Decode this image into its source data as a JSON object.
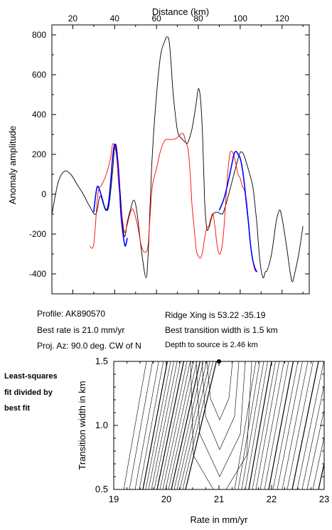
{
  "chart_data": [
    {
      "type": "line",
      "xlabel": "Distance (km)",
      "ylabel": "Anomaly amplitude",
      "xlim": [
        10,
        133
      ],
      "ylim": [
        -500,
        850
      ],
      "x_ticks": [
        20,
        40,
        60,
        80,
        100,
        120
      ],
      "y_ticks": [
        -400,
        -200,
        0,
        200,
        400,
        600,
        800
      ],
      "x_axis_position": "top",
      "grid": false,
      "series": [
        {
          "color": "#000000",
          "points": [
            [
              10,
              -100
            ],
            [
              13,
              60
            ],
            [
              16,
              115
            ],
            [
              19,
              100
            ],
            [
              22,
              50
            ],
            [
              25,
              0
            ],
            [
              28,
              -60
            ],
            [
              31,
              -100
            ],
            [
              33,
              -10
            ],
            [
              35,
              -60
            ],
            [
              37,
              -70
            ],
            [
              39,
              110
            ],
            [
              40,
              240
            ],
            [
              41,
              230
            ],
            [
              42,
              100
            ],
            [
              44,
              -170
            ],
            [
              45,
              -210
            ],
            [
              46,
              -140
            ],
            [
              48,
              -60
            ],
            [
              49,
              -30
            ],
            [
              50,
              -50
            ],
            [
              51,
              -120
            ],
            [
              53,
              -300
            ],
            [
              55,
              -420
            ],
            [
              56,
              -300
            ],
            [
              57,
              -40
            ],
            [
              58,
              200
            ],
            [
              60,
              500
            ],
            [
              62,
              700
            ],
            [
              64,
              770
            ],
            [
              65,
              790
            ],
            [
              66,
              770
            ],
            [
              67,
              650
            ],
            [
              68,
              500
            ],
            [
              70,
              320
            ],
            [
              72,
              280
            ],
            [
              74,
              260
            ],
            [
              75,
              260
            ],
            [
              77,
              330
            ],
            [
              79,
              460
            ],
            [
              80,
              530
            ],
            [
              81,
              480
            ],
            [
              82,
              300
            ],
            [
              83,
              -30
            ],
            [
              84,
              -170
            ],
            [
              85,
              -170
            ],
            [
              86,
              -130
            ],
            [
              87,
              -100
            ],
            [
              89,
              -90
            ],
            [
              91,
              -100
            ],
            [
              92,
              -90
            ],
            [
              94,
              -20
            ],
            [
              96,
              60
            ],
            [
              98,
              140
            ],
            [
              99,
              180
            ],
            [
              100,
              210
            ],
            [
              101,
              210
            ],
            [
              102,
              190
            ],
            [
              104,
              120
            ],
            [
              106,
              40
            ],
            [
              107,
              -50
            ],
            [
              108,
              -150
            ],
            [
              109,
              -290
            ],
            [
              110,
              -380
            ],
            [
              111,
              -420
            ],
            [
              112,
              -390
            ],
            [
              113,
              -380
            ],
            [
              115,
              -300
            ],
            [
              117,
              -150
            ],
            [
              118,
              -100
            ],
            [
              119,
              -80
            ],
            [
              120,
              -120
            ],
            [
              122,
              -250
            ],
            [
              124,
              -400
            ],
            [
              125,
              -440
            ],
            [
              126,
              -400
            ],
            [
              128,
              -300
            ],
            [
              130,
              -160
            ]
          ]
        },
        {
          "color": "#ff0000",
          "points": [
            [
              28,
              -260
            ],
            [
              30,
              -250
            ],
            [
              32,
              0
            ],
            [
              34,
              50
            ],
            [
              36,
              100
            ],
            [
              38,
              180
            ],
            [
              39,
              250
            ],
            [
              40,
              240
            ],
            [
              41,
              180
            ],
            [
              42,
              40
            ],
            [
              44,
              -150
            ],
            [
              45,
              -190
            ],
            [
              47,
              -110
            ],
            [
              48,
              -80
            ],
            [
              49,
              -80
            ],
            [
              51,
              -160
            ],
            [
              53,
              -270
            ],
            [
              55,
              -290
            ],
            [
              56,
              -250
            ],
            [
              57,
              -100
            ],
            [
              58,
              40
            ],
            [
              60,
              130
            ],
            [
              62,
              220
            ],
            [
              64,
              270
            ],
            [
              66,
              275
            ],
            [
              68,
              275
            ],
            [
              70,
              285
            ],
            [
              72,
              305
            ],
            [
              73,
              300
            ],
            [
              74,
              260
            ],
            [
              75,
              230
            ],
            [
              76,
              120
            ],
            [
              77,
              -60
            ],
            [
              78,
              -170
            ],
            [
              79,
              -280
            ],
            [
              80,
              -310
            ],
            [
              81,
              -320
            ],
            [
              82,
              -290
            ],
            [
              83,
              -220
            ],
            [
              84,
              -170
            ],
            [
              85,
              -160
            ],
            [
              86,
              -120
            ],
            [
              87,
              -100
            ],
            [
              88,
              -170
            ],
            [
              89,
              -260
            ],
            [
              90,
              -300
            ],
            [
              91,
              -280
            ],
            [
              92,
              -200
            ],
            [
              93,
              -50
            ],
            [
              94,
              100
            ],
            [
              95,
              200
            ],
            [
              96,
              215
            ],
            [
              97,
              195
            ],
            [
              98,
              150
            ],
            [
              99,
              100
            ],
            [
              100,
              80
            ],
            [
              101,
              40
            ],
            [
              102,
              20
            ],
            [
              103,
              -30
            ],
            [
              104,
              -150
            ],
            [
              105,
              -260
            ],
            [
              106,
              -330
            ],
            [
              107,
              -380
            ],
            [
              108,
              -390
            ]
          ]
        },
        {
          "color": "#0000ff",
          "points": [
            [
              30,
              -90
            ],
            [
              31,
              0
            ],
            [
              32,
              40
            ],
            [
              34,
              -20
            ],
            [
              35,
              -60
            ],
            [
              36,
              -80
            ],
            [
              37,
              -50
            ],
            [
              38,
              50
            ],
            [
              39,
              180
            ],
            [
              40,
              250
            ],
            [
              41,
              210
            ],
            [
              42,
              100
            ],
            [
              43,
              -100
            ],
            [
              44,
              -200
            ],
            [
              45,
              -260
            ],
            [
              46,
              -220
            ]
          ]
        },
        {
          "color": "#0000ff",
          "points": [
            [
              90,
              -80
            ],
            [
              92,
              -30
            ],
            [
              94,
              50
            ],
            [
              96,
              150
            ],
            [
              97,
              200
            ],
            [
              98,
              215
            ],
            [
              99,
              200
            ],
            [
              100,
              180
            ],
            [
              101,
              130
            ],
            [
              102,
              50
            ],
            [
              103,
              -50
            ],
            [
              104,
              -150
            ],
            [
              105,
              -260
            ],
            [
              106,
              -330
            ],
            [
              107,
              -370
            ],
            [
              108,
              -390
            ]
          ]
        }
      ]
    },
    {
      "type": "contour",
      "xlabel": "Rate in mm/yr",
      "ylabel": "Transition width in km",
      "xlim": [
        19,
        23
      ],
      "ylim": [
        0.5,
        1.5
      ],
      "x_ticks": [
        19,
        20,
        21,
        22,
        23
      ],
      "y_ticks": [
        0.5,
        1.0,
        1.5
      ],
      "best_fit_point": [
        21.0,
        1.5
      ],
      "grid": false
    }
  ],
  "info": {
    "profile": "Profile: AK890570",
    "best_rate": "Best rate is 21.0 mm/yr",
    "proj_az": "Proj. Az: 90.0 deg. CW of N",
    "ridge_xing": "Ridge Xing is 53.22 -35.19",
    "best_width": "Best transition width is 1.5 km",
    "depth": "Depth to source is   2.46 km"
  },
  "side_note": [
    "Least-squares",
    "fit divided by",
    "best fit"
  ]
}
